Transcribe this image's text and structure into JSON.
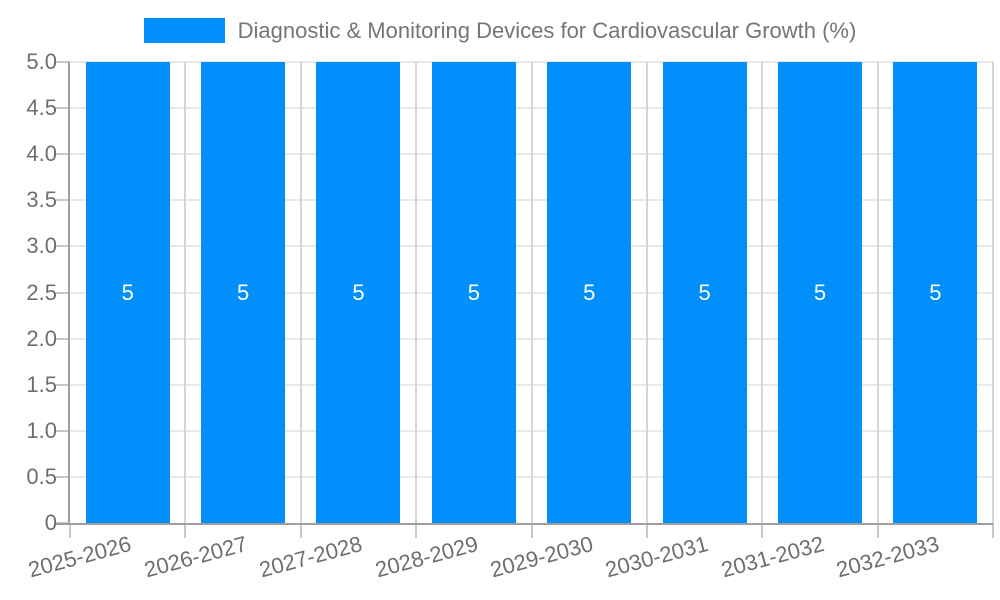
{
  "chart_data": {
    "type": "bar",
    "title": "Diagnostic & Monitoring Devices for Cardiovascular Growth (%)",
    "categories": [
      "2025-2026",
      "2026-2027",
      "2027-2028",
      "2028-2029",
      "2029-2030",
      "2030-2031",
      "2031-2032",
      "2032-2033"
    ],
    "values": [
      5,
      5,
      5,
      5,
      5,
      5,
      5,
      5
    ],
    "bar_value_labels": [
      "5",
      "5",
      "5",
      "5",
      "5",
      "5",
      "5",
      "5"
    ],
    "xlabel": "",
    "ylabel": "",
    "ylim": [
      0,
      5
    ],
    "ytick_step": 0.5,
    "ytick_labels": [
      "0",
      "0.5",
      "1.0",
      "1.5",
      "2.0",
      "2.5",
      "3.0",
      "3.5",
      "4.0",
      "4.5",
      "5.0"
    ],
    "legend_position": "top",
    "grid": true,
    "x_label_rotation_deg": -15,
    "colors": {
      "bar": "#008FFB",
      "bar_label": "#ffffff",
      "axis_label": "#6e6e6e",
      "title": "#757575",
      "grid_h": "#e8e8e8",
      "grid_v": "#d5d5d5",
      "axis_line": "#9e9e9e",
      "tick": "#c9c9c9",
      "background": "#ffffff"
    }
  }
}
